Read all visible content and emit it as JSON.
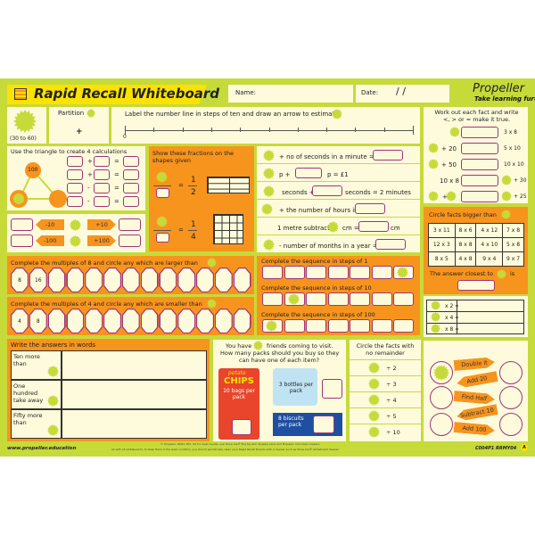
{
  "header": {
    "title": "Rapid Recall Whiteboard",
    "name_label": "Name:",
    "date_label": "Date:",
    "date_separators": "/        /",
    "brand": "Propeller",
    "tagline": "Take learning further"
  },
  "partition": {
    "range": "(30 to 60)",
    "label": "Partition",
    "plus": "+"
  },
  "number_line": {
    "instruction": "Label the number line in steps of ten and draw an arrow to estimate",
    "start": "0"
  },
  "triangle": {
    "instruction": "Use the triangle to create 4 calculations",
    "top": "100",
    "ops": [
      "+",
      "+",
      "-",
      "-"
    ],
    "eq": "="
  },
  "arrows": {
    "labels": [
      "-10",
      "+10",
      "-100",
      "+100"
    ]
  },
  "fractions": {
    "instruction": "Show these fractions on the shapes given",
    "items": [
      {
        "num": "1",
        "den": "2"
      },
      {
        "num": "1",
        "den": "4"
      }
    ],
    "eq": "="
  },
  "facts": {
    "items": [
      "+ no of seconds in a minute =",
      "p +",
      "p = £1",
      "seconds +",
      "seconds = 2 minutes",
      "+ the number of hours in a day =",
      "1 metre subtract",
      "cm =",
      "cm",
      "- number of months in a year ="
    ]
  },
  "compare": {
    "instruction": "Work out each fact and write <, > or = make it true.",
    "rows": [
      {
        "left": "",
        "right": "3 x 8"
      },
      {
        "left": "+ 20",
        "right": "5 x 10"
      },
      {
        "left": "+ 50",
        "right": "10 x 10"
      },
      {
        "left": "10 x 8",
        "right": "+ 30"
      },
      {
        "left": "+",
        "right": "+ 25"
      }
    ]
  },
  "circle_facts": {
    "title": "Circle facts bigger than",
    "grid": [
      [
        "3 x 11",
        "8 x 6",
        "4 x 12",
        "7 x 8"
      ],
      [
        "12 x 3",
        "8 x 8",
        "4 x 10",
        "5 x 8"
      ],
      [
        "8 x 5",
        "4 x 8",
        "9 x 4",
        "9 x 7"
      ]
    ],
    "closest": "The answer closest to",
    "is": "is"
  },
  "multiples": [
    {
      "instruction": "Complete the multiples of 8 and circle any which are larger than",
      "values": [
        "8",
        "16",
        "",
        "",
        "",
        "",
        "",
        "",
        "",
        "",
        "",
        "",
        ""
      ]
    },
    {
      "instruction": "Complete the multiples of 4 and circle any which are smaller than",
      "values": [
        "4",
        "8",
        "",
        "",
        "",
        "",
        "",
        "",
        "",
        "",
        "",
        "",
        ""
      ]
    }
  ],
  "sequences": [
    "Complete the sequence in steps of 1",
    "Complete the sequence in steps of 10",
    "Complete the sequence in steps of 100"
  ],
  "times": {
    "rows": [
      "x 2 =",
      "x 4 =",
      "x 8 ="
    ]
  },
  "words": {
    "instruction": "Write the answers in words",
    "rows": [
      "Ten more than",
      "One hundred take away",
      "Fifty more than"
    ]
  },
  "friends": {
    "line1a": "You have",
    "line1b": "friends coming to visit.",
    "line2": "How many packs should you buy so they",
    "line3": "can have one of each item?",
    "chips_brand": "potato",
    "chips": "CHIPS",
    "chips_pack": "10 bags per pack",
    "bottles": "3 bottles per pack",
    "biscuits": "8 biscuits per pack"
  },
  "remainder": {
    "instruction": "Circle the facts with no remainder",
    "rows": [
      "÷ 2",
      "÷ 3",
      "÷ 4",
      "÷ 5",
      "÷ 10"
    ]
  },
  "chain": {
    "steps": [
      "Double it",
      "Add 20",
      "Find Half",
      "Subtract 10",
      "Add 100"
    ]
  },
  "footer": {
    "url": "www.propeller.education",
    "copyright": "© Propeller, NN12 3EX, UK     For best results, use Show-me® fine tip slim drywipe pens and Propeller mini foam erasers.",
    "care": "As with all whiteboards, to keep them in the best condition, you should periodically clean your Rapid Recall Boards with a cleaner such as Show-me® whiteboard cleaner.",
    "codes": "C004P1    RRMY04",
    "version": "A"
  },
  "colors": {
    "lime": "#c6da3a",
    "orange": "#f7941d",
    "cream": "#fdfbdc",
    "purple": "#a0357a"
  }
}
